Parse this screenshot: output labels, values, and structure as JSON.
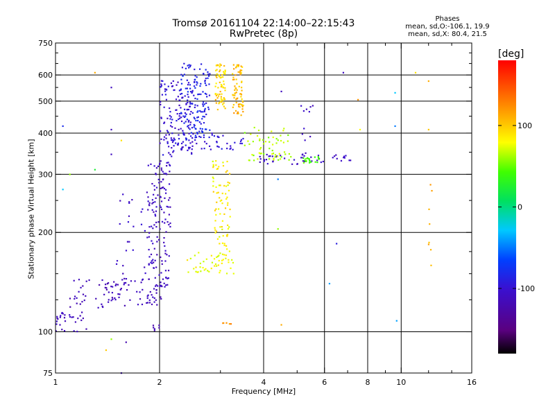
{
  "header": {
    "title": "Tromsø 20161104 22:14:00–22:15:43",
    "subtitle": "RwPretec (8p)",
    "phases_title": "Phases",
    "phases_o": "mean, sd,O:-106.1, 19.9",
    "phases_x": "mean, sd,X:  80.4, 21.5"
  },
  "colorbar": {
    "label": "[deg]",
    "ticks": [
      {
        "value": 100,
        "label": "100"
      },
      {
        "value": 0,
        "label": "0"
      },
      {
        "value": -100,
        "label": "-100"
      }
    ],
    "range": [
      -180,
      180
    ]
  },
  "chart_data": {
    "type": "scatter",
    "xlabel": "Frequency [MHz]",
    "ylabel": "Stationary phase Virtual Height [km]",
    "x_scale": "log",
    "y_scale": "log",
    "xlim": [
      1,
      16
    ],
    "ylim": [
      75,
      750
    ],
    "x_ticks": [
      {
        "value": 1,
        "label": "1"
      },
      {
        "value": 2,
        "label": "2"
      },
      {
        "value": 4,
        "label": "4"
      },
      {
        "value": 6,
        "label": "6"
      },
      {
        "value": 8,
        "label": "8"
      },
      {
        "value": 10,
        "label": "10"
      },
      {
        "value": 16,
        "label": "16"
      }
    ],
    "x_gridlines": [
      2,
      4,
      6,
      8,
      10
    ],
    "x_minor_ticks": [
      3,
      5,
      7,
      9,
      12,
      14
    ],
    "y_ticks": [
      {
        "value": 75,
        "label": "75"
      },
      {
        "value": 100,
        "label": "100"
      },
      {
        "value": 200,
        "label": "200"
      },
      {
        "value": 300,
        "label": "300"
      },
      {
        "value": 400,
        "label": "400"
      },
      {
        "value": 500,
        "label": "500"
      },
      {
        "value": 600,
        "label": "600"
      },
      {
        "value": 750,
        "label": "750"
      }
    ],
    "y_gridlines": [
      100,
      200,
      300,
      400,
      500,
      600
    ],
    "y_minor_ticks": [
      125,
      150,
      175,
      250,
      350,
      450,
      550,
      650,
      700
    ],
    "grid": true,
    "clusters": [
      {
        "mode": "O",
        "phase": -110,
        "spread": 8,
        "count": 30,
        "f": [
          1.0,
          1.25
        ],
        "h": [
          100,
          115
        ]
      },
      {
        "mode": "O",
        "phase": -115,
        "spread": 8,
        "count": 40,
        "f": [
          1.1,
          1.5
        ],
        "h": [
          118,
          145
        ]
      },
      {
        "mode": "O",
        "phase": -112,
        "spread": 8,
        "count": 60,
        "f": [
          1.45,
          2.05
        ],
        "h": [
          120,
          145
        ]
      },
      {
        "mode": "O",
        "phase": -108,
        "spread": 10,
        "count": 140,
        "f": [
          1.85,
          2.15
        ],
        "h": [
          135,
          330
        ]
      },
      {
        "mode": "O",
        "phase": -105,
        "spread": 10,
        "count": 25,
        "f": [
          1.5,
          1.9
        ],
        "h": [
          150,
          270
        ]
      },
      {
        "mode": "O",
        "phase": -100,
        "spread": 12,
        "count": 130,
        "f": [
          2.0,
          2.5
        ],
        "h": [
          340,
          580
        ]
      },
      {
        "mode": "O",
        "phase": -85,
        "spread": 12,
        "count": 140,
        "f": [
          2.3,
          2.8
        ],
        "h": [
          380,
          650
        ]
      },
      {
        "mode": "O",
        "phase": -95,
        "spread": 10,
        "count": 60,
        "f": [
          2.1,
          3.5
        ],
        "h": [
          355,
          400
        ]
      },
      {
        "mode": "O",
        "phase": -105,
        "spread": 8,
        "count": 45,
        "f": [
          3.9,
          7.3
        ],
        "h": [
          322,
          345
        ]
      },
      {
        "mode": "O",
        "phase": -108,
        "spread": 8,
        "count": 12,
        "f": [
          5.0,
          5.6
        ],
        "h": [
          345,
          490
        ]
      },
      {
        "mode": "O",
        "phase": -118,
        "spread": 5,
        "count": 6,
        "f": [
          1.9,
          2.0
        ],
        "h": [
          100,
          105
        ]
      },
      {
        "mode": "X",
        "phase": 85,
        "spread": 15,
        "count": 80,
        "f": [
          2.85,
          3.2
        ],
        "h": [
          165,
          330
        ]
      },
      {
        "mode": "X",
        "phase": 80,
        "spread": 12,
        "count": 45,
        "f": [
          2.4,
          3.3
        ],
        "h": [
          150,
          175
        ]
      },
      {
        "mode": "X",
        "phase": 95,
        "spread": 15,
        "count": 70,
        "f": [
          2.9,
          3.1
        ],
        "h": [
          470,
          650
        ]
      },
      {
        "mode": "X",
        "phase": 105,
        "spread": 15,
        "count": 75,
        "f": [
          3.25,
          3.5
        ],
        "h": [
          450,
          650
        ]
      },
      {
        "mode": "X",
        "phase": 65,
        "spread": 12,
        "count": 60,
        "f": [
          3.5,
          4.8
        ],
        "h": [
          330,
          420
        ]
      },
      {
        "mode": "X",
        "phase": 45,
        "spread": 10,
        "count": 20,
        "f": [
          5.2,
          5.8
        ],
        "h": [
          325,
          340
        ]
      },
      {
        "mode": "X",
        "phase": 110,
        "spread": 10,
        "count": 8,
        "f": [
          12.0,
          12.3
        ],
        "h": [
          150,
          300
        ]
      },
      {
        "mode": "X",
        "phase": 120,
        "spread": 10,
        "count": 5,
        "f": [
          3.0,
          3.3
        ],
        "h": [
          103,
          107
        ]
      }
    ],
    "scattered_points": [
      {
        "f": 1.3,
        "h": 610,
        "phase": 110
      },
      {
        "f": 1.45,
        "h": 550,
        "phase": -110
      },
      {
        "f": 1.45,
        "h": 410,
        "phase": -110
      },
      {
        "f": 1.55,
        "h": 380,
        "phase": 90
      },
      {
        "f": 1.45,
        "h": 345,
        "phase": -110
      },
      {
        "f": 1.3,
        "h": 310,
        "phase": 20
      },
      {
        "f": 1.1,
        "h": 300,
        "phase": 60
      },
      {
        "f": 1.05,
        "h": 420,
        "phase": -80
      },
      {
        "f": 1.05,
        "h": 270,
        "phase": -30
      },
      {
        "f": 1.4,
        "h": 88,
        "phase": 100
      },
      {
        "f": 1.45,
        "h": 95,
        "phase": 60
      },
      {
        "f": 1.6,
        "h": 93,
        "phase": -120
      },
      {
        "f": 1.55,
        "h": 75,
        "phase": -110
      },
      {
        "f": 4.5,
        "h": 535,
        "phase": -110
      },
      {
        "f": 4.5,
        "h": 105,
        "phase": 110
      },
      {
        "f": 6.5,
        "h": 185,
        "phase": -90
      },
      {
        "f": 6.8,
        "h": 610,
        "phase": -110
      },
      {
        "f": 7.6,
        "h": 410,
        "phase": 80
      },
      {
        "f": 7.5,
        "h": 505,
        "phase": 120
      },
      {
        "f": 9.6,
        "h": 530,
        "phase": -30
      },
      {
        "f": 9.6,
        "h": 420,
        "phase": -50
      },
      {
        "f": 9.7,
        "h": 108,
        "phase": -40
      },
      {
        "f": 6.2,
        "h": 140,
        "phase": -40
      },
      {
        "f": 4.4,
        "h": 290,
        "phase": -50
      },
      {
        "f": 4.4,
        "h": 205,
        "phase": 60
      },
      {
        "f": 12.0,
        "h": 575,
        "phase": 110
      },
      {
        "f": 11.0,
        "h": 610,
        "phase": 90
      },
      {
        "f": 12.0,
        "h": 410,
        "phase": 100
      }
    ]
  }
}
